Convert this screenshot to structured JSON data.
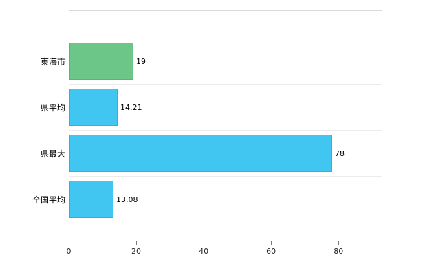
{
  "chart_data": {
    "type": "bar",
    "orientation": "horizontal",
    "title": "",
    "xlabel": "",
    "ylabel": "",
    "legend": "none",
    "grid": "light band separators",
    "categories": [
      "東海市",
      "県平均",
      "県最大",
      "全国平均"
    ],
    "values": [
      19,
      14.21,
      78,
      13.08
    ],
    "value_labels": [
      "19",
      "14.21",
      "78",
      "13.08"
    ],
    "x_ticks": [
      0,
      20,
      40,
      60,
      80
    ],
    "x_tick_labels": [
      "0",
      "20",
      "40",
      "60",
      "80"
    ],
    "xlim": [
      0,
      92.8
    ],
    "bar_fill_colors": [
      "#6cc687",
      "#41c5f1",
      "#41c5f1",
      "#41c5f1"
    ],
    "bar_border_colors": [
      "#53b773",
      "#2ab2e2",
      "#2ab2e2",
      "#2ab2e2"
    ]
  },
  "colors": {
    "background": "#ffffff",
    "axis": "#7a7a7a",
    "plot_border": "#d9d9d9",
    "text": "#000000"
  }
}
